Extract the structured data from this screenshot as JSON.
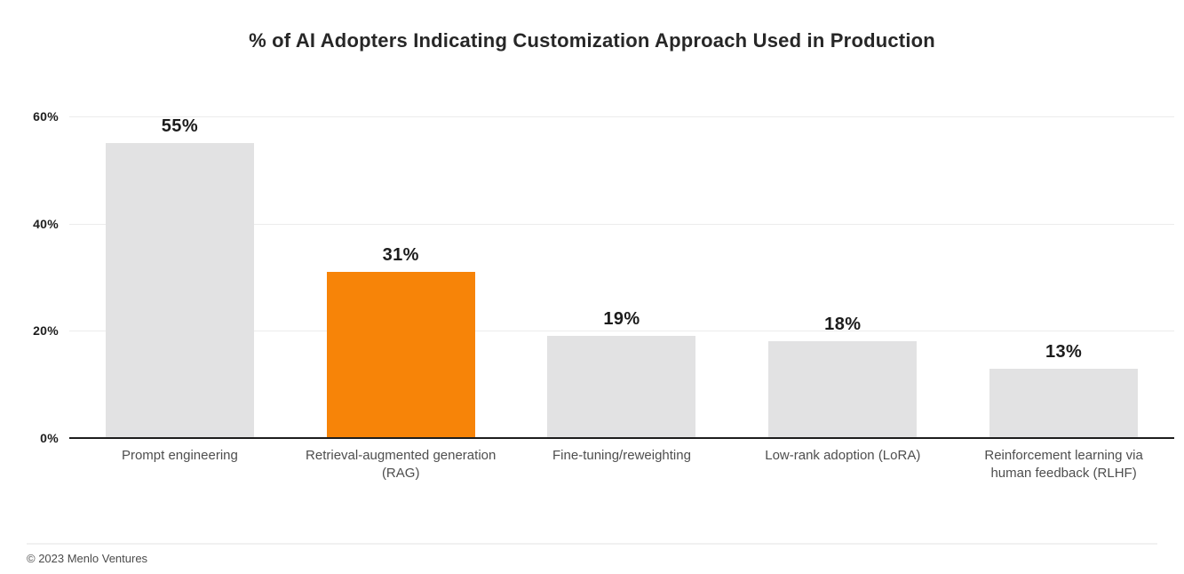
{
  "chart_data": {
    "type": "bar",
    "title": "% of AI Adopters Indicating Customization Approach Used in Production",
    "categories": [
      "Prompt engineering",
      "Retrieval-augmented generation\n(RAG)",
      "Fine-tuning/reweighting",
      "Low-rank adoption (LoRA)",
      "Reinforcement learning via\nhuman feedback (RLHF)"
    ],
    "values": [
      55,
      31,
      19,
      18,
      13
    ],
    "value_labels": [
      "55%",
      "31%",
      "19%",
      "18%",
      "13%"
    ],
    "highlight_index": 1,
    "ylim": [
      0,
      60
    ],
    "yticks": [
      {
        "label": "60%",
        "value": 60
      },
      {
        "label": "40%",
        "value": 40
      },
      {
        "label": "20%",
        "value": 20
      },
      {
        "label": "0%",
        "value": 0
      }
    ],
    "grid": "horizontal",
    "legend": "none",
    "xlabel": "",
    "ylabel": ""
  },
  "colors": {
    "background": "#FFFFFF",
    "bar_default": "#E2E2E3",
    "bar_highlight": "#F78408",
    "grid_line": "#ECECEC",
    "axis_line": "#1D1D1D",
    "title_text": "#272727",
    "value_text": "#1C1C1C",
    "tick_text": "#1E1E1E",
    "category_text": "#4E4E4E"
  },
  "footer": {
    "copyright": "© 2023 Menlo Ventures"
  }
}
